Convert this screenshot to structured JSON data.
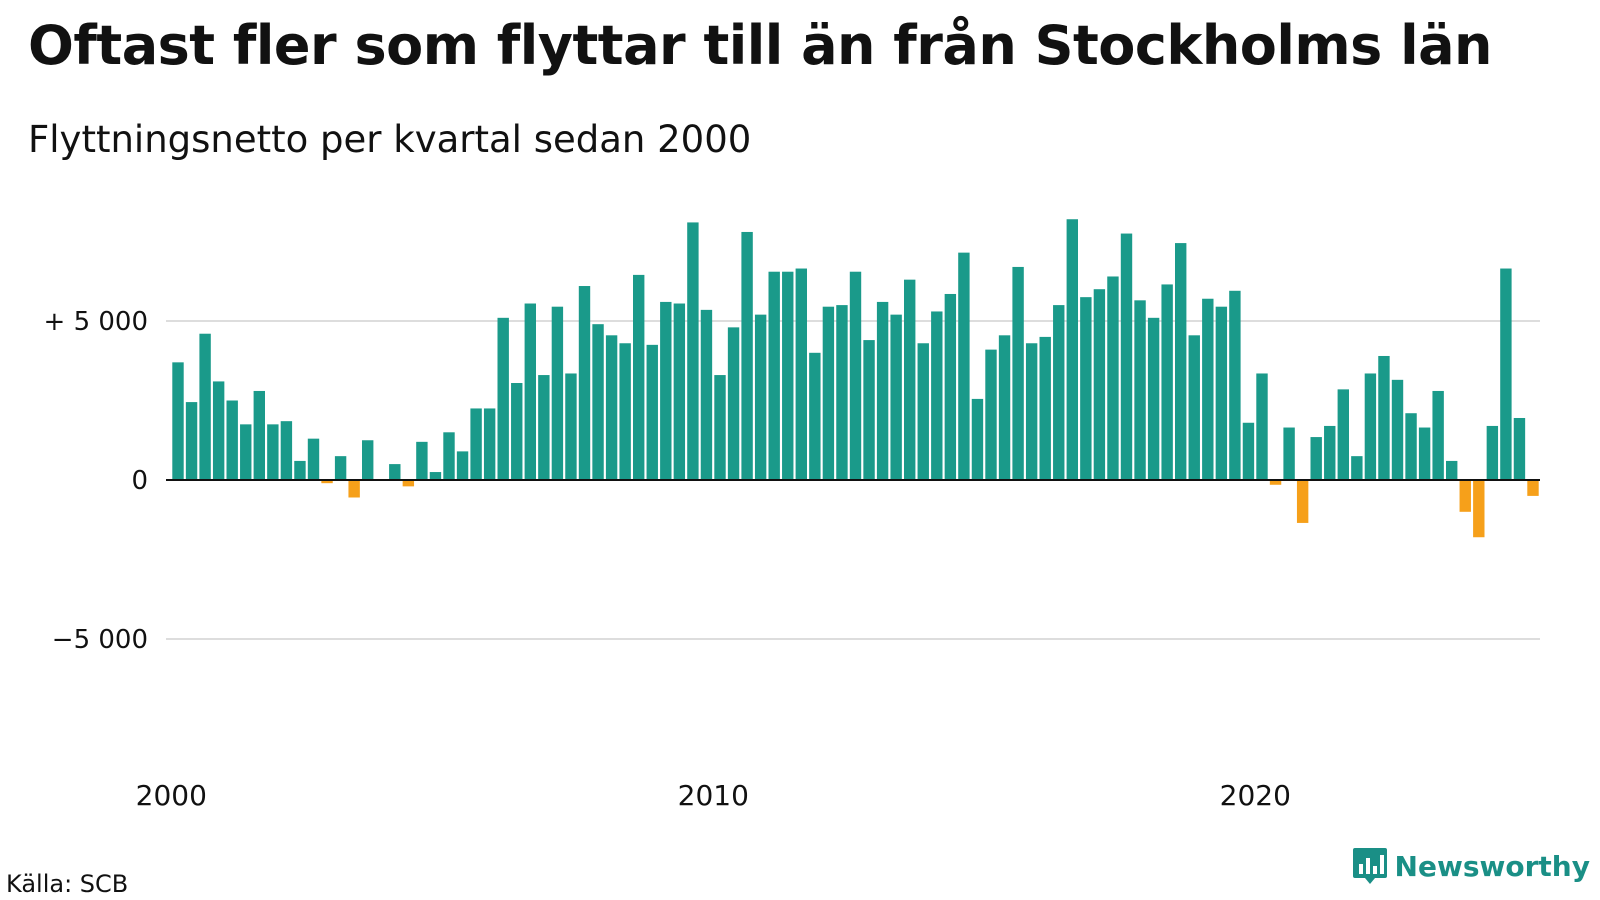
{
  "title": "Oftast fler som flyttar till än från Stockholms län",
  "subtitle": "Flyttningsnetto per kvartal sedan 2000",
  "source": "Källa: SCB",
  "logo": {
    "text": "Newsworthy",
    "icon": "newsworthy-logo-icon"
  },
  "colors": {
    "positive": "#1a9a8a",
    "negative": "#f6a01a",
    "grid": "#dddddd",
    "baseline": "#111111"
  },
  "chart_data": {
    "type": "bar",
    "title": "Oftast fler som flyttar till än från Stockholms län",
    "subtitle": "Flyttningsnetto per kvartal sedan 2000",
    "xlabel": "",
    "ylabel": "",
    "ylim": [
      -9000,
      9000
    ],
    "grid": true,
    "y_ticks": [
      {
        "value": 5000,
        "label": "+ 5 000"
      },
      {
        "value": 0,
        "label": "0"
      },
      {
        "value": -5000,
        "label": "−5 000"
      }
    ],
    "x_ticks": [
      "2000",
      "2010",
      "2020"
    ],
    "start": "2000 Q1",
    "end": "2025 Q2",
    "categories": [
      "2000 Q1",
      "2000 Q2",
      "2000 Q3",
      "2000 Q4",
      "2001 Q1",
      "2001 Q2",
      "2001 Q3",
      "2001 Q4",
      "2002 Q1",
      "2002 Q2",
      "2002 Q3",
      "2002 Q4",
      "2003 Q1",
      "2003 Q2",
      "2003 Q3",
      "2003 Q4",
      "2004 Q1",
      "2004 Q2",
      "2004 Q3",
      "2004 Q4",
      "2005 Q1",
      "2005 Q2",
      "2005 Q3",
      "2005 Q4",
      "2006 Q1",
      "2006 Q2",
      "2006 Q3",
      "2006 Q4",
      "2007 Q1",
      "2007 Q2",
      "2007 Q3",
      "2007 Q4",
      "2008 Q1",
      "2008 Q2",
      "2008 Q3",
      "2008 Q4",
      "2009 Q1",
      "2009 Q2",
      "2009 Q3",
      "2009 Q4",
      "2010 Q1",
      "2010 Q2",
      "2010 Q3",
      "2010 Q4",
      "2011 Q1",
      "2011 Q2",
      "2011 Q3",
      "2011 Q4",
      "2012 Q1",
      "2012 Q2",
      "2012 Q3",
      "2012 Q4",
      "2013 Q1",
      "2013 Q2",
      "2013 Q3",
      "2013 Q4",
      "2014 Q1",
      "2014 Q2",
      "2014 Q3",
      "2014 Q4",
      "2015 Q1",
      "2015 Q2",
      "2015 Q3",
      "2015 Q4",
      "2016 Q1",
      "2016 Q2",
      "2016 Q3",
      "2016 Q4",
      "2017 Q1",
      "2017 Q2",
      "2017 Q3",
      "2017 Q4",
      "2018 Q1",
      "2018 Q2",
      "2018 Q3",
      "2018 Q4",
      "2019 Q1",
      "2019 Q2",
      "2019 Q3",
      "2019 Q4",
      "2020 Q1",
      "2020 Q2",
      "2020 Q3",
      "2020 Q4",
      "2021 Q1",
      "2021 Q2",
      "2021 Q3",
      "2021 Q4",
      "2022 Q1",
      "2022 Q2",
      "2022 Q3",
      "2022 Q4",
      "2023 Q1",
      "2023 Q2",
      "2023 Q3",
      "2023 Q4",
      "2024 Q1",
      "2024 Q2",
      "2024 Q3",
      "2024 Q4",
      "2025 Q1",
      "2025 Q2"
    ],
    "values": [
      3700,
      2450,
      4600,
      3100,
      2500,
      1750,
      2800,
      1750,
      1850,
      600,
      1300,
      -100,
      750,
      -550,
      1250,
      0,
      500,
      -200,
      1200,
      250,
      1500,
      900,
      2250,
      2250,
      5100,
      3050,
      5550,
      3300,
      5450,
      3350,
      6100,
      4900,
      4550,
      4300,
      6450,
      4250,
      5600,
      5550,
      8100,
      5350,
      3300,
      4800,
      7800,
      5200,
      6550,
      6550,
      6650,
      4000,
      5450,
      5500,
      6550,
      4400,
      5600,
      5200,
      6300,
      4300,
      5300,
      5850,
      7150,
      2550,
      4100,
      4550,
      6700,
      4300,
      4500,
      5500,
      8200,
      5750,
      6000,
      6400,
      7750,
      5650,
      5100,
      6150,
      7450,
      4550,
      5700,
      5450,
      5950,
      1800,
      3350,
      -150,
      1650,
      -1350,
      1350,
      1700,
      2850,
      750,
      3350,
      3900,
      3150,
      2100,
      1650,
      2800,
      600,
      -1000,
      -1800,
      1700,
      6650,
      1950,
      -500,
      0
    ]
  }
}
